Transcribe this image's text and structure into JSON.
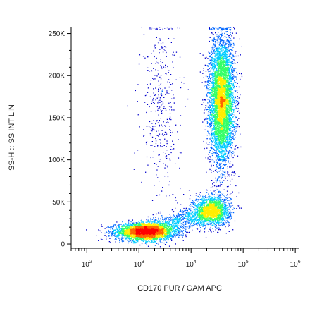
{
  "chart_data": {
    "type": "scatter",
    "subtype": "flow-cytometry-density-dot-plot",
    "title": "",
    "xlabel": "CD170 PUR / GAM APC",
    "ylabel": "SS-H :: SS INT LIN",
    "x_scale": "log",
    "y_scale": "linear",
    "xlim": [
      50,
      1200000
    ],
    "ylim": [
      -5000,
      258000
    ],
    "grid": false,
    "legend": "none",
    "colormap": [
      "#0000cc",
      "#0066ff",
      "#00ccff",
      "#33ff66",
      "#ffee00",
      "#ff6600",
      "#ff0000"
    ],
    "x_ticks": [
      {
        "value": 100,
        "base": "10",
        "exp": "2"
      },
      {
        "value": 1000,
        "base": "10",
        "exp": "3"
      },
      {
        "value": 10000,
        "base": "10",
        "exp": "4"
      },
      {
        "value": 100000,
        "base": "10",
        "exp": "5"
      },
      {
        "value": 1000000,
        "base": "10",
        "exp": "6"
      }
    ],
    "y_ticks": [
      {
        "value": 0,
        "label": "0"
      },
      {
        "value": 50000,
        "label": "50K"
      },
      {
        "value": 100000,
        "label": "100K"
      },
      {
        "value": 150000,
        "label": "150K"
      },
      {
        "value": 200000,
        "label": "200K"
      },
      {
        "value": 250000,
        "label": "250K"
      }
    ],
    "populations": [
      {
        "x_center": 1300,
        "x_log_sd": 0.28,
        "y_center": 15000,
        "y_sd": 5000,
        "events": 3500
      },
      {
        "x_center": 25000,
        "x_log_sd": 0.17,
        "y_center": 40000,
        "y_sd": 9000,
        "events": 1800
      },
      {
        "x_center": 38000,
        "x_log_sd": 0.12,
        "y_center": 170000,
        "y_sd": 38000,
        "events": 5500
      },
      {
        "x_center": 2500,
        "x_log_sd": 0.18,
        "y_center": 160000,
        "y_sd": 60000,
        "events": 400
      }
    ]
  }
}
